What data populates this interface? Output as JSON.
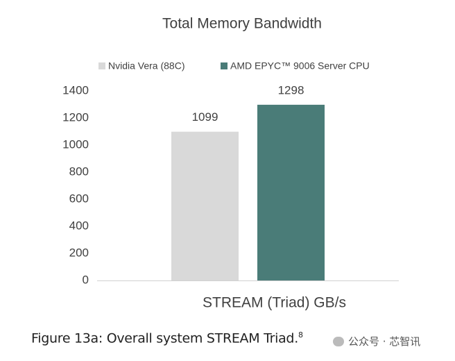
{
  "chart_data": {
    "type": "bar",
    "title": "Total Memory Bandwidth",
    "categories": [
      "STREAM (Triad) GB/s"
    ],
    "series": [
      {
        "name": "Nvidia Vera (88C)",
        "color": "#d9d9d9",
        "values": [
          1099
        ]
      },
      {
        "name": "AMD EPYC™ 9006 Server CPU",
        "color": "#4a7c78",
        "values": [
          1298
        ]
      }
    ],
    "ylim": [
      0,
      1400
    ],
    "yticks": [
      0,
      200,
      400,
      600,
      800,
      1000,
      1200,
      1400
    ],
    "grid": false,
    "legend": "top"
  },
  "caption": {
    "text": "Figure 13a: Overall system STREAM Triad.",
    "footnote": "8"
  },
  "watermark": "公众号 · 芯智讯"
}
